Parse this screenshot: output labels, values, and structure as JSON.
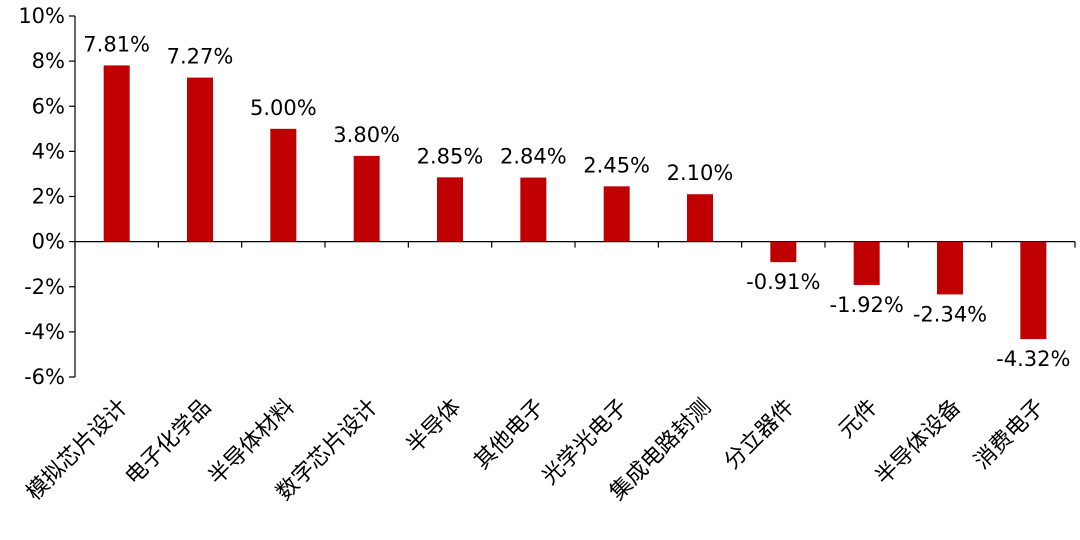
{
  "chart_data": {
    "type": "bar",
    "categories": [
      "模拟芯片设计",
      "电子化学品",
      "半导体材料",
      "数字芯片设计",
      "半导体",
      "其他电子",
      "光学光电子",
      "集成电路封测",
      "分立器件",
      "元件",
      "半导体设备",
      "消费电子"
    ],
    "values": [
      7.81,
      7.27,
      5.0,
      3.8,
      2.85,
      2.84,
      2.45,
      2.1,
      -0.91,
      -1.92,
      -2.34,
      -4.32
    ],
    "data_labels": [
      "7.81%",
      "7.27%",
      "5.00%",
      "3.80%",
      "2.85%",
      "2.84%",
      "2.45%",
      "2.10%",
      "-0.91%",
      "-1.92%",
      "-2.34%",
      "-4.32%"
    ],
    "y_ticks": [
      10,
      8,
      6,
      4,
      2,
      0,
      -2,
      -4,
      -6
    ],
    "y_tick_labels": [
      "10%",
      "8%",
      "6%",
      "4%",
      "2%",
      "0%",
      "-2%",
      "-4%",
      "-6%"
    ],
    "ylim": [
      -6,
      10
    ],
    "title": "",
    "xlabel": "",
    "ylabel": "",
    "grid": false,
    "legend": "none",
    "bar_color": "#c00000"
  }
}
